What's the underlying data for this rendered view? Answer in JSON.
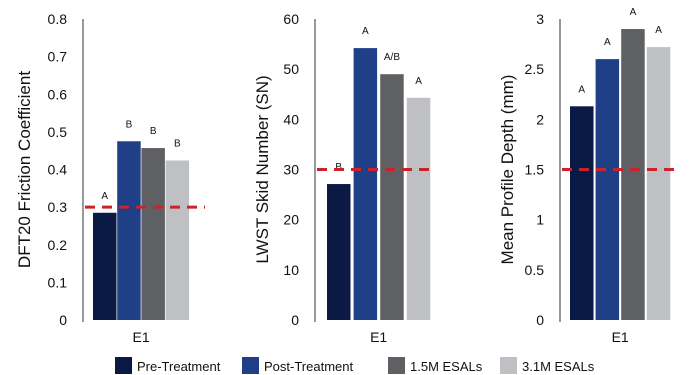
{
  "legend": {
    "items": [
      {
        "label": "Pre-Treatment",
        "color": "#0b1a45"
      },
      {
        "label": "Post-Treatment",
        "color": "#1f3f86"
      },
      {
        "label": "1.5M ESALs",
        "color": "#5f6064"
      },
      {
        "label": "3.1M ESALs",
        "color": "#bfc0c3"
      }
    ]
  },
  "chart_data": [
    {
      "type": "bar",
      "categories": [
        "E1"
      ],
      "series": [
        {
          "name": "Pre-Treatment",
          "values": [
            0.285
          ],
          "label": "A",
          "color": "#0b1a45"
        },
        {
          "name": "Post-Treatment",
          "values": [
            0.475
          ],
          "label": "B",
          "color": "#1f3f86"
        },
        {
          "name": "1.5M ESALs",
          "values": [
            0.457
          ],
          "label": "B",
          "color": "#5f6064"
        },
        {
          "name": "3.1M ESALs",
          "values": [
            0.424
          ],
          "label": "B",
          "color": "#bfc0c3"
        }
      ],
      "ylabel": "DFT20 Friction Coefficient",
      "ylim": [
        0,
        0.8
      ],
      "yticks": [
        "0",
        "0.1",
        "0.2",
        "0.3",
        "0.4",
        "0.5",
        "0.6",
        "0.7",
        "0.8"
      ],
      "threshold": {
        "value": 0.3,
        "color": "#cc2229"
      }
    },
    {
      "type": "bar",
      "categories": [
        "E1"
      ],
      "series": [
        {
          "name": "Pre-Treatment",
          "values": [
            27.1
          ],
          "label": "B",
          "color": "#0b1a45"
        },
        {
          "name": "Post-Treatment",
          "values": [
            54.2
          ],
          "label": "A",
          "color": "#1f3f86"
        },
        {
          "name": "1.5M ESALs",
          "values": [
            49.0
          ],
          "label": "A/B",
          "color": "#5f6064"
        },
        {
          "name": "3.1M ESALs",
          "values": [
            44.3
          ],
          "label": "A",
          "color": "#bfc0c3"
        }
      ],
      "ylabel": "LWST Skid Number (SN)",
      "ylim": [
        0,
        60
      ],
      "yticks": [
        "0",
        "10",
        "20",
        "30",
        "40",
        "50",
        "60"
      ],
      "threshold": {
        "value": 30,
        "color": "#cc2229"
      }
    },
    {
      "type": "bar",
      "categories": [
        "E1"
      ],
      "series": [
        {
          "name": "Pre-Treatment",
          "values": [
            2.13
          ],
          "label": "A",
          "color": "#0b1a45"
        },
        {
          "name": "Post-Treatment",
          "values": [
            2.6
          ],
          "label": "A",
          "color": "#1f3f86"
        },
        {
          "name": "1.5M ESALs",
          "values": [
            2.9
          ],
          "label": "A",
          "color": "#5f6064"
        },
        {
          "name": "3.1M ESALs",
          "values": [
            2.72
          ],
          "label": "A",
          "color": "#bfc0c3"
        }
      ],
      "ylabel": "Mean Profile Depth (mm)",
      "ylim": [
        0,
        3
      ],
      "yticks": [
        "0",
        "0.5",
        "1",
        "1.5",
        "2",
        "2.5",
        "3"
      ],
      "threshold": {
        "value": 1.5,
        "color": "#cc2229"
      }
    }
  ]
}
